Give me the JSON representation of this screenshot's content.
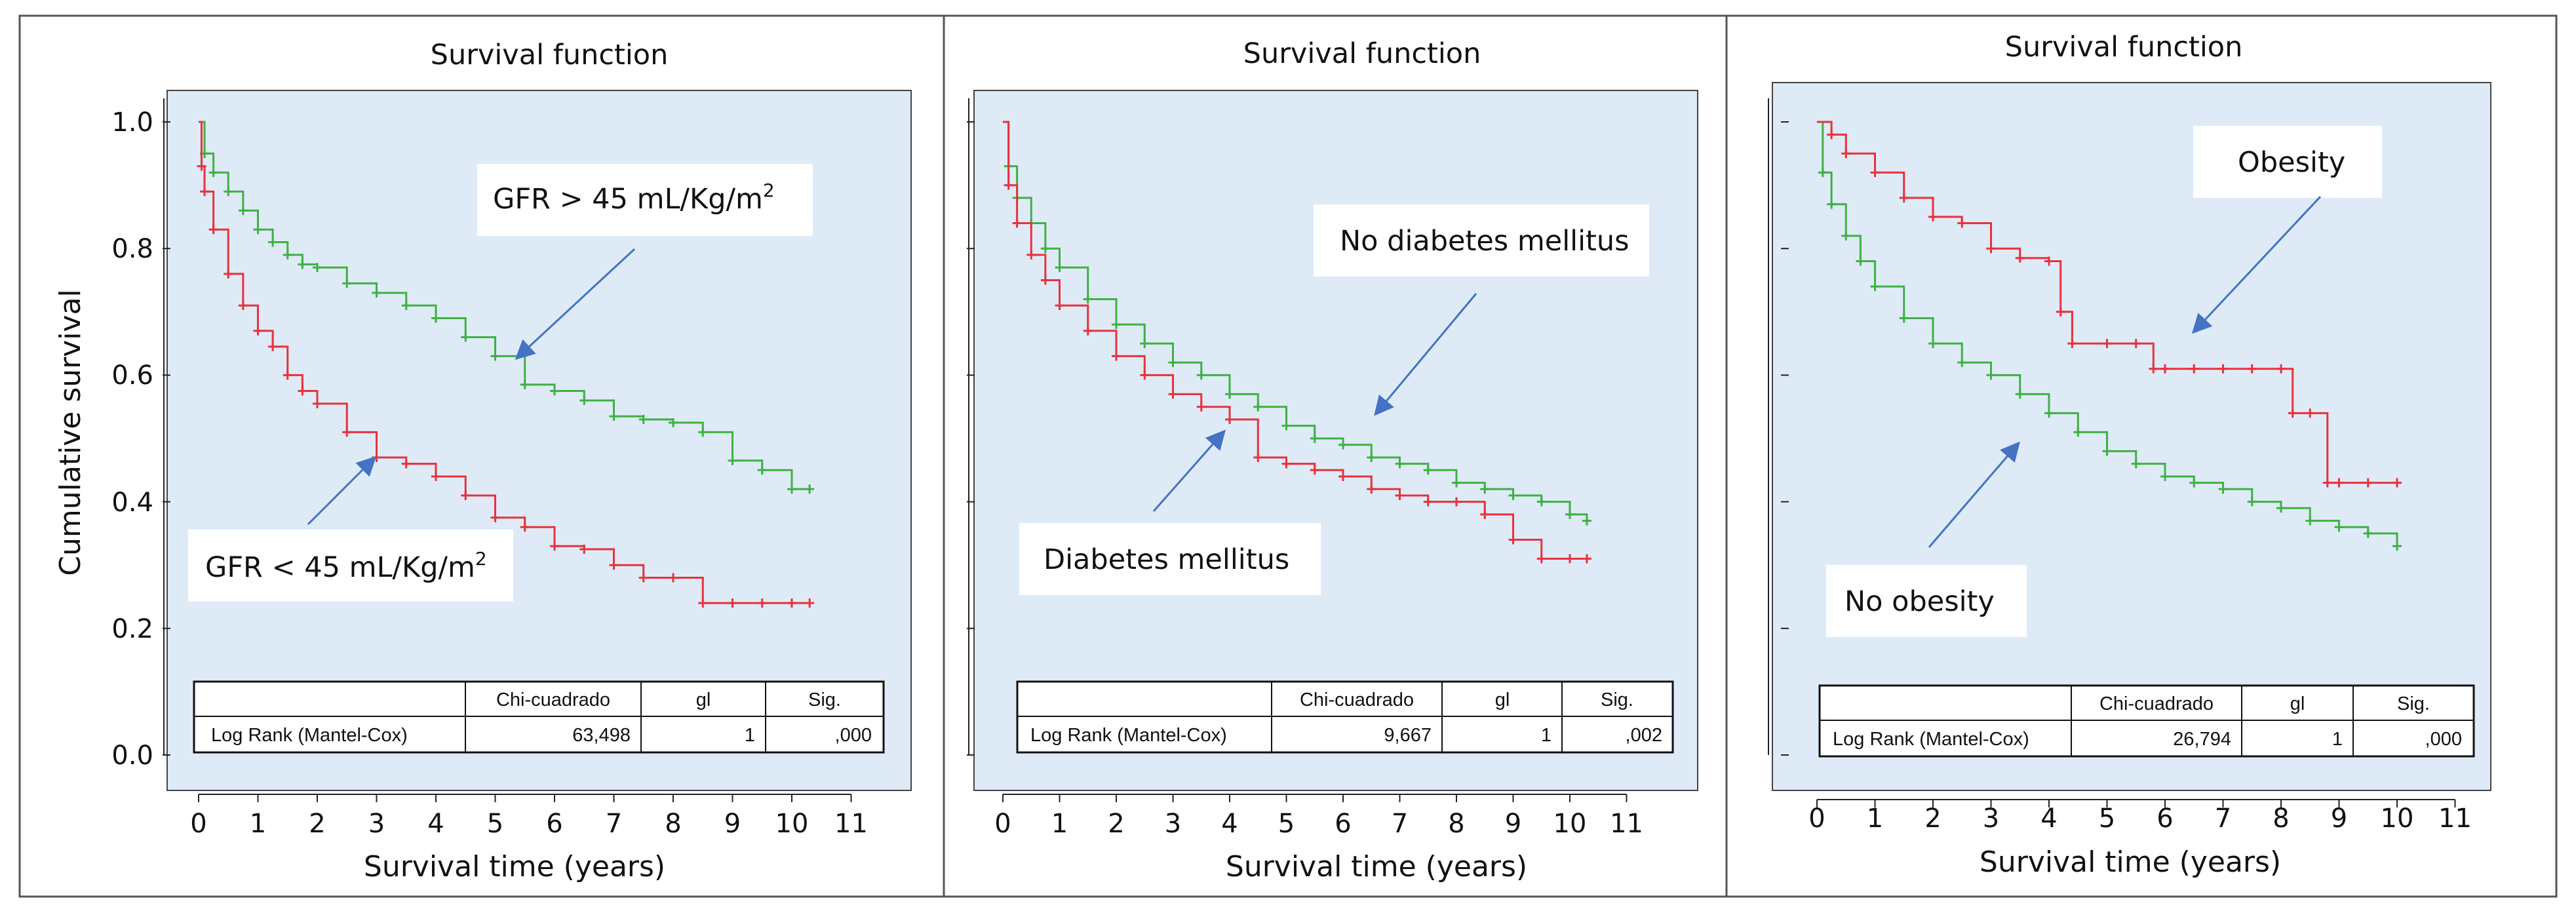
{
  "figure": {
    "colors": {
      "background": "#deebf7",
      "green": "#3fb142",
      "red": "#e8323c",
      "arrow": "#4472c4"
    }
  },
  "chart_data": [
    {
      "type": "line",
      "title": "Survival function",
      "xlabel": "Survival time (years)",
      "ylabel": "Cumulative survival",
      "xlim": [
        0,
        11
      ],
      "ylim": [
        0,
        1
      ],
      "xticks": [
        "0",
        "1",
        "2",
        "3",
        "4",
        "5",
        "6",
        "7",
        "8",
        "9",
        "10",
        "11"
      ],
      "yticks": [
        "0.0",
        "0.2",
        "0.4",
        "0.6",
        "0.8",
        "1.0"
      ],
      "series": [
        {
          "name": "GFR > 45 mL/Kg/m2",
          "color": "#3fb142",
          "x": [
            0,
            0.1,
            0.25,
            0.5,
            0.75,
            1,
            1.25,
            1.5,
            1.75,
            2,
            2.5,
            3,
            3.5,
            4,
            4.5,
            5,
            5.5,
            6,
            6.5,
            7,
            7.5,
            8,
            8.5,
            9,
            9.5,
            10,
            10.3
          ],
          "y": [
            1.0,
            0.95,
            0.92,
            0.89,
            0.86,
            0.83,
            0.81,
            0.79,
            0.775,
            0.77,
            0.745,
            0.73,
            0.71,
            0.69,
            0.66,
            0.63,
            0.585,
            0.575,
            0.56,
            0.535,
            0.53,
            0.525,
            0.51,
            0.465,
            0.45,
            0.42,
            0.42
          ]
        },
        {
          "name": "GFR < 45 mL/Kg/m2",
          "color": "#e8323c",
          "x": [
            0,
            0.05,
            0.1,
            0.25,
            0.5,
            0.75,
            1,
            1.25,
            1.5,
            1.75,
            2,
            2.5,
            3,
            3.5,
            4,
            4.5,
            5,
            5.5,
            6,
            6.5,
            7,
            7.5,
            8,
            8.5,
            9,
            9.5,
            10,
            10.3
          ],
          "y": [
            1.0,
            0.93,
            0.89,
            0.83,
            0.76,
            0.71,
            0.67,
            0.645,
            0.6,
            0.575,
            0.555,
            0.51,
            0.47,
            0.46,
            0.44,
            0.41,
            0.375,
            0.36,
            0.33,
            0.325,
            0.3,
            0.28,
            0.28,
            0.24,
            0.24,
            0.24,
            0.24,
            0.24
          ]
        }
      ],
      "annotations": [
        {
          "text": "GFR > 45 mL/Kg/m",
          "sup": "2"
        },
        {
          "text": "GFR < 45 mL/Kg/m",
          "sup": "2"
        }
      ],
      "table": {
        "headers": [
          "Chi-cuadrado",
          "gl",
          "Sig."
        ],
        "row_label": "Log Rank (Mantel-Cox)",
        "values": [
          "63,498",
          "1",
          ",000"
        ]
      }
    },
    {
      "type": "line",
      "title": "Survival function",
      "xlabel": "Survival time (years)",
      "xlim": [
        0,
        11
      ],
      "ylim": [
        0,
        1
      ],
      "xticks": [
        "0",
        "1",
        "2",
        "3",
        "4",
        "5",
        "6",
        "7",
        "8",
        "9",
        "10",
        "11"
      ],
      "series": [
        {
          "name": "No diabetes mellitus",
          "color": "#3fb142",
          "x": [
            0,
            0.1,
            0.25,
            0.5,
            0.75,
            1,
            1.5,
            2,
            2.5,
            3,
            3.5,
            4,
            4.5,
            5,
            5.5,
            6,
            6.5,
            7,
            7.5,
            8,
            8.5,
            9,
            9.5,
            10,
            10.3
          ],
          "y": [
            1.0,
            0.93,
            0.88,
            0.84,
            0.8,
            0.77,
            0.72,
            0.68,
            0.65,
            0.62,
            0.6,
            0.57,
            0.55,
            0.52,
            0.5,
            0.49,
            0.47,
            0.46,
            0.45,
            0.43,
            0.42,
            0.41,
            0.4,
            0.38,
            0.37
          ]
        },
        {
          "name": "Diabetes mellitus",
          "color": "#e8323c",
          "x": [
            0,
            0.1,
            0.25,
            0.5,
            0.75,
            1,
            1.5,
            2,
            2.5,
            3,
            3.5,
            4,
            4.5,
            5,
            5.5,
            6,
            6.5,
            7,
            7.5,
            8,
            8.5,
            9,
            9.5,
            10,
            10.3
          ],
          "y": [
            1.0,
            0.9,
            0.84,
            0.79,
            0.75,
            0.71,
            0.67,
            0.63,
            0.6,
            0.57,
            0.55,
            0.53,
            0.47,
            0.46,
            0.45,
            0.44,
            0.42,
            0.41,
            0.4,
            0.4,
            0.38,
            0.34,
            0.31,
            0.31,
            0.31
          ]
        }
      ],
      "annotations": [
        {
          "text": "No diabetes mellitus"
        },
        {
          "text": "Diabetes mellitus"
        }
      ],
      "table": {
        "headers": [
          "Chi-cuadrado",
          "gl",
          "Sig."
        ],
        "row_label": "Log Rank (Mantel-Cox)",
        "values": [
          "9,667",
          "1",
          ",002"
        ]
      }
    },
    {
      "type": "line",
      "title": "Survival function",
      "xlabel": "Survival time (years)",
      "xlim": [
        0,
        11
      ],
      "ylim": [
        0,
        1
      ],
      "xticks": [
        "0",
        "1",
        "2",
        "3",
        "4",
        "5",
        "6",
        "7",
        "8",
        "9",
        "10",
        "11"
      ],
      "series": [
        {
          "name": "No obesity",
          "color": "#3fb142",
          "x": [
            0,
            0.1,
            0.25,
            0.5,
            0.75,
            1,
            1.5,
            2,
            2.5,
            3,
            3.5,
            4,
            4.5,
            5,
            5.5,
            6,
            6.5,
            7,
            7.5,
            8,
            8.5,
            9,
            9.5,
            10
          ],
          "y": [
            1.0,
            0.92,
            0.87,
            0.82,
            0.78,
            0.74,
            0.69,
            0.65,
            0.62,
            0.6,
            0.57,
            0.54,
            0.51,
            0.48,
            0.46,
            0.44,
            0.43,
            0.42,
            0.4,
            0.39,
            0.37,
            0.36,
            0.35,
            0.33
          ]
        },
        {
          "name": "Obesity",
          "color": "#e8323c",
          "x": [
            0,
            0.25,
            0.5,
            1,
            1.5,
            2,
            2.5,
            3,
            3.5,
            4,
            4.2,
            4.4,
            5,
            5.5,
            5.8,
            6,
            6.5,
            7,
            7.5,
            8,
            8.2,
            8.5,
            8.8,
            9,
            9.5,
            10
          ],
          "y": [
            1.0,
            0.98,
            0.95,
            0.92,
            0.88,
            0.85,
            0.84,
            0.8,
            0.785,
            0.78,
            0.7,
            0.65,
            0.65,
            0.65,
            0.61,
            0.61,
            0.61,
            0.61,
            0.61,
            0.61,
            0.54,
            0.54,
            0.43,
            0.43,
            0.43,
            0.43
          ]
        }
      ],
      "annotations": [
        {
          "text": "Obesity"
        },
        {
          "text": "No obesity"
        }
      ],
      "table": {
        "headers": [
          "Chi-cuadrado",
          "gl",
          "Sig."
        ],
        "row_label": "Log Rank (Mantel-Cox)",
        "values": [
          "26,794",
          "1",
          ",000"
        ]
      }
    }
  ]
}
